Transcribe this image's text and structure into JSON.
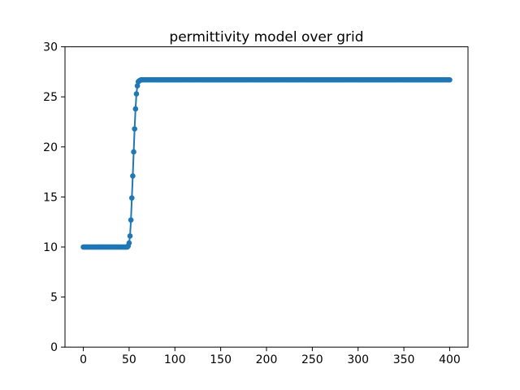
{
  "figure": {
    "background_color": "#ffffff",
    "axes_background_color": "#ffffff",
    "spine_color": "#000000",
    "tick_color": "#000000"
  },
  "chart_data": {
    "type": "line",
    "marker": "o",
    "title": "permittivity model over grid",
    "xlabel": "",
    "ylabel": "",
    "xlim": [
      -20,
      420
    ],
    "ylim": [
      0,
      30
    ],
    "xticks": [
      0,
      50,
      100,
      150,
      200,
      250,
      300,
      350,
      400
    ],
    "yticks": [
      0,
      5,
      10,
      15,
      20,
      25,
      30
    ],
    "grid": false,
    "legend": false,
    "series_color": "#1f77b4",
    "series_name": "permittivity",
    "x_step": 1,
    "baseline_value": 10.0,
    "plateau_value": 26.7,
    "segments": [
      {
        "kind": "flat",
        "x_start": 0,
        "x_end": 48,
        "y": 10.0
      },
      {
        "kind": "explicit",
        "points": [
          [
            49,
            10.1
          ],
          [
            50,
            10.4
          ],
          [
            51,
            11.1
          ],
          [
            52,
            12.7
          ],
          [
            53,
            14.9
          ],
          [
            54,
            17.1
          ],
          [
            55,
            19.5
          ],
          [
            56,
            21.8
          ],
          [
            57,
            23.8
          ],
          [
            58,
            25.3
          ],
          [
            59,
            26.1
          ],
          [
            60,
            26.5
          ],
          [
            61,
            26.6
          ],
          [
            62,
            26.65
          ]
        ]
      },
      {
        "kind": "flat",
        "x_start": 63,
        "x_end": 400,
        "y": 26.7
      }
    ]
  }
}
